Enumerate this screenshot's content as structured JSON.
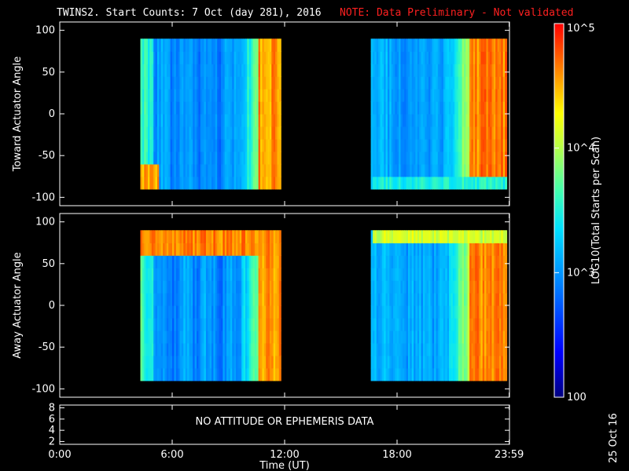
{
  "title": "TWINS2. Start Counts:  7 Oct (day 281), 2016",
  "note": "NOTE: Data Preliminary - Not validated",
  "date_stamp": "25 Oct 16",
  "colors": {
    "background": "#000000",
    "axes": "#ffffff",
    "note": "#ff2020"
  },
  "chart_data": [
    {
      "type": "heatmap",
      "ylabel": "Toward Actuator Angle",
      "ylim": [
        -110,
        110
      ],
      "yticks": [
        -100,
        -50,
        0,
        50,
        100
      ],
      "xlim": [
        0,
        24
      ],
      "data_blocks": [
        {
          "t_start": 4.3,
          "t_end": 11.8,
          "angle_min": -90,
          "angle_max": 90
        },
        {
          "t_start": 16.6,
          "t_end": 23.85,
          "angle_min": -90,
          "angle_max": 90
        }
      ]
    },
    {
      "type": "heatmap",
      "ylabel": "Away Actuator Angle",
      "ylim": [
        -110,
        110
      ],
      "yticks": [
        -100,
        -50,
        0,
        50,
        100
      ],
      "xlim": [
        0,
        24
      ],
      "data_blocks": [
        {
          "t_start": 4.3,
          "t_end": 11.8,
          "angle_min": -90,
          "angle_max": 90
        },
        {
          "t_start": 16.6,
          "t_end": 23.85,
          "angle_min": -90,
          "angle_max": 90
        }
      ]
    },
    {
      "type": "line",
      "ylim": [
        1.5,
        8.5
      ],
      "yticks": [
        2,
        4,
        6,
        8
      ],
      "message": "NO ATTITUDE OR EPHEMERIS DATA",
      "xlabel": "Time (UT)",
      "xticks": [
        "0:00",
        "6:00",
        "12:00",
        "18:00",
        "23:59"
      ],
      "xtick_values": [
        0,
        6,
        12,
        18,
        23.983
      ]
    }
  ],
  "colorbar": {
    "label": "LOG10(Total Starts per Scan)",
    "scale": "log",
    "range": [
      100,
      100000
    ],
    "tick_labels": [
      "100",
      "10^3",
      "10^4",
      "10^5"
    ],
    "tick_values": [
      100,
      1000,
      10000,
      100000
    ]
  }
}
